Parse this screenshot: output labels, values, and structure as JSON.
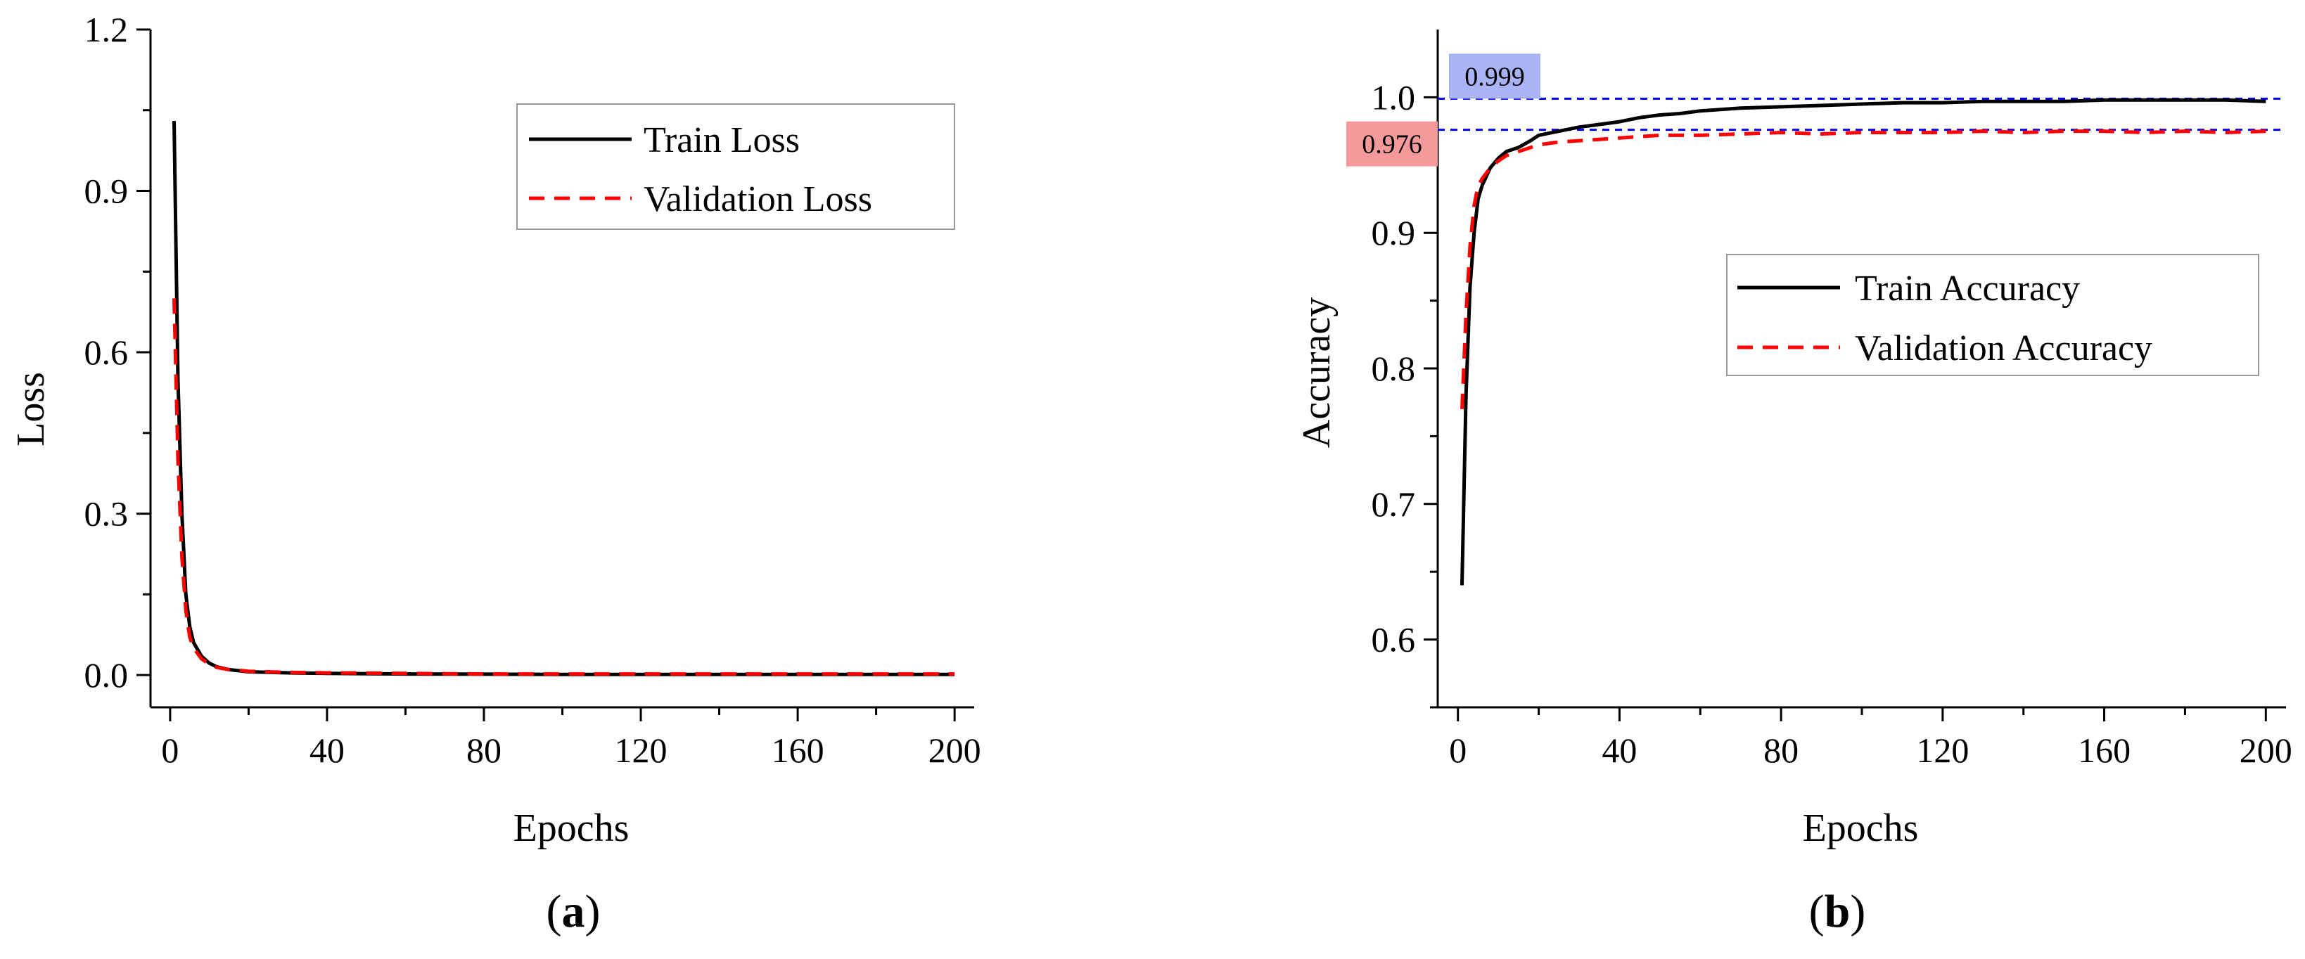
{
  "chart_data": [
    {
      "id": "a",
      "type": "line",
      "panel_label": "a",
      "xlabel": "Epochs",
      "ylabel": "Loss",
      "xlim": [
        -5,
        205
      ],
      "ylim": [
        -0.06,
        1.2
      ],
      "xticks": [
        0,
        40,
        80,
        120,
        160,
        200
      ],
      "yticks": [
        0.0,
        0.3,
        0.6,
        0.9,
        1.2
      ],
      "ytick_decimals": 1,
      "grid": false,
      "legend_position": "top-right",
      "series": [
        {
          "name": "Train Loss",
          "color": "#000000",
          "style": "solid",
          "x": [
            1,
            2,
            3,
            4,
            5,
            6,
            8,
            10,
            12,
            15,
            20,
            30,
            40,
            60,
            80,
            100,
            120,
            140,
            160,
            180,
            200
          ],
          "y": [
            1.03,
            0.55,
            0.3,
            0.15,
            0.09,
            0.06,
            0.035,
            0.022,
            0.015,
            0.01,
            0.006,
            0.004,
            0.003,
            0.002,
            0.0015,
            0.001,
            0.001,
            0.001,
            0.001,
            0.001,
            0.001
          ]
        },
        {
          "name": "Validation Loss",
          "color": "#ff0000",
          "style": "dashed",
          "x": [
            1,
            2,
            3,
            4,
            5,
            6,
            8,
            10,
            12,
            15,
            20,
            30,
            40,
            60,
            80,
            100,
            120,
            140,
            160,
            180,
            200
          ],
          "y": [
            0.7,
            0.4,
            0.22,
            0.12,
            0.07,
            0.05,
            0.03,
            0.02,
            0.014,
            0.01,
            0.007,
            0.005,
            0.004,
            0.003,
            0.002,
            0.002,
            0.002,
            0.002,
            0.002,
            0.002,
            0.002
          ]
        }
      ]
    },
    {
      "id": "b",
      "type": "line",
      "panel_label": "b",
      "xlabel": "Epochs",
      "ylabel": "Accuracy",
      "xlim": [
        -5,
        205
      ],
      "ylim": [
        0.55,
        1.05
      ],
      "xticks": [
        0,
        40,
        80,
        120,
        160,
        200
      ],
      "yticks": [
        0.6,
        0.7,
        0.8,
        0.9,
        1.0
      ],
      "ytick_decimals": 1,
      "grid": false,
      "legend_position": "center-right",
      "reference_lines": [
        {
          "value": 0.999,
          "label": "0.999",
          "line_color": "#0000ff",
          "box_color": "#aab4f5"
        },
        {
          "value": 0.976,
          "label": "0.976",
          "line_color": "#0000ff",
          "box_color": "#f59a9a"
        }
      ],
      "series": [
        {
          "name": "Train Accuracy",
          "color": "#000000",
          "style": "solid",
          "x": [
            1,
            2,
            3,
            4,
            5,
            6,
            8,
            10,
            12,
            15,
            18,
            20,
            25,
            30,
            35,
            40,
            45,
            50,
            55,
            60,
            70,
            80,
            90,
            100,
            110,
            120,
            130,
            140,
            150,
            160,
            170,
            180,
            190,
            200
          ],
          "y": [
            0.64,
            0.78,
            0.86,
            0.9,
            0.925,
            0.935,
            0.948,
            0.955,
            0.96,
            0.963,
            0.968,
            0.972,
            0.975,
            0.978,
            0.98,
            0.982,
            0.985,
            0.987,
            0.988,
            0.99,
            0.992,
            0.993,
            0.994,
            0.995,
            0.996,
            0.996,
            0.997,
            0.997,
            0.997,
            0.998,
            0.998,
            0.998,
            0.998,
            0.997
          ]
        },
        {
          "name": "Validation Accuracy",
          "color": "#ff0000",
          "style": "dashed",
          "x": [
            1,
            2,
            3,
            4,
            5,
            6,
            8,
            10,
            12,
            15,
            18,
            20,
            25,
            30,
            35,
            40,
            45,
            50,
            55,
            60,
            70,
            80,
            90,
            100,
            110,
            120,
            130,
            140,
            150,
            160,
            170,
            180,
            190,
            200
          ],
          "y": [
            0.77,
            0.84,
            0.89,
            0.92,
            0.935,
            0.94,
            0.948,
            0.953,
            0.957,
            0.96,
            0.963,
            0.965,
            0.967,
            0.968,
            0.969,
            0.97,
            0.971,
            0.972,
            0.972,
            0.972,
            0.973,
            0.974,
            0.973,
            0.974,
            0.974,
            0.974,
            0.975,
            0.974,
            0.975,
            0.975,
            0.974,
            0.975,
            0.974,
            0.975
          ]
        }
      ]
    }
  ]
}
